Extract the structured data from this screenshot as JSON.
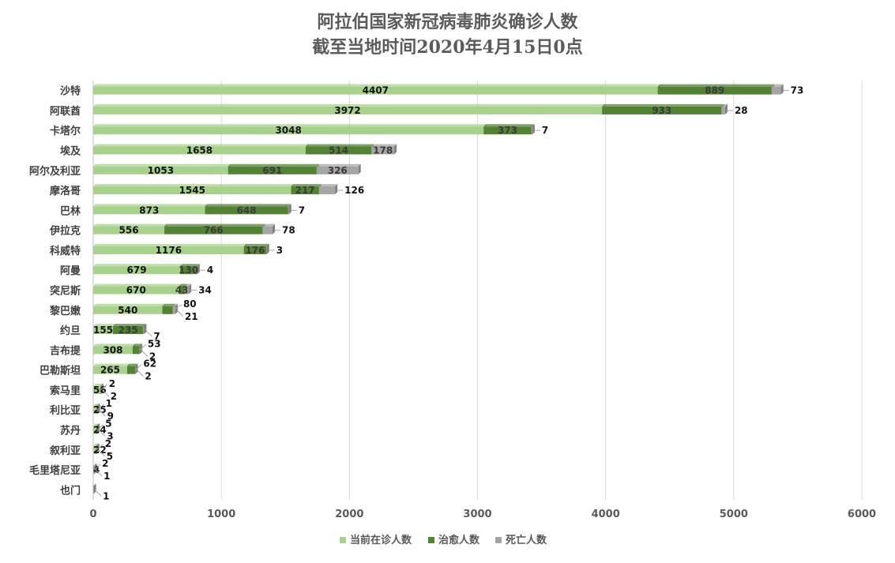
{
  "chart_data": {
    "type": "bar",
    "orientation": "horizontal",
    "stacked": true,
    "title": "阿拉伯国家新冠病毒肺炎确诊人数",
    "subtitle": "截至当地时间2020年4月15日0点",
    "categories": [
      "沙特",
      "阿联酋",
      "卡塔尔",
      "埃及",
      "阿尔及利亚",
      "摩洛哥",
      "巴林",
      "伊拉克",
      "科威特",
      "阿曼",
      "突尼斯",
      "黎巴嫩",
      "约旦",
      "吉布提",
      "巴勒斯坦",
      "索马里",
      "利比亚",
      "苏丹",
      "叙利亚",
      "毛里塔尼亚",
      "也门"
    ],
    "series": [
      {
        "name": "当前在诊人数",
        "color": "#a9d18e",
        "values": [
          4407,
          3972,
          3048,
          1658,
          1053,
          1545,
          873,
          556,
          1176,
          679,
          670,
          540,
          155,
          308,
          265,
          56,
          25,
          24,
          22,
          4,
          0
        ]
      },
      {
        "name": "治愈人数",
        "color": "#548235",
        "values": [
          889,
          933,
          373,
          514,
          691,
          217,
          648,
          766,
          176,
          130,
          43,
          80,
          235,
          53,
          62,
          2,
          1,
          5,
          2,
          2,
          0
        ]
      },
      {
        "name": "死亡人数",
        "color": "#a5a5a5",
        "values": [
          73,
          28,
          7,
          178,
          326,
          126,
          7,
          78,
          3,
          4,
          34,
          21,
          7,
          2,
          2,
          2,
          9,
          3,
          5,
          1,
          1
        ]
      }
    ],
    "xlim": [
      0,
      6000
    ],
    "xticks": [
      "0",
      "1000",
      "2000",
      "3000",
      "4000",
      "5000",
      "6000"
    ],
    "grid": true,
    "legend_position": "bottom"
  }
}
